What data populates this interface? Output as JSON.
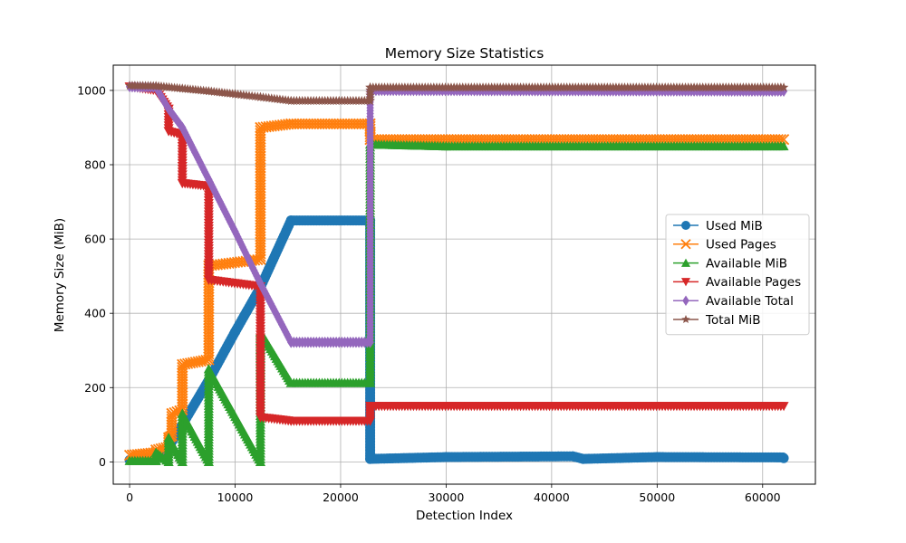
{
  "chart_data": {
    "type": "line",
    "title": "Memory Size Statistics",
    "xlabel": "Detection Index",
    "ylabel": "Memory Size (MiB)",
    "xlim": [
      -1550,
      65000
    ],
    "ylim": [
      -60,
      1068
    ],
    "xticks": [
      0,
      10000,
      20000,
      30000,
      40000,
      50000,
      60000
    ],
    "xtick_labels": [
      "0",
      "10000",
      "20000",
      "30000",
      "40000",
      "50000",
      "60000"
    ],
    "yticks": [
      0,
      200,
      400,
      600,
      800,
      1000
    ],
    "ytick_labels": [
      "0",
      "200",
      "400",
      "600",
      "800",
      "1000"
    ],
    "grid": true,
    "legend_position": "center-right",
    "series": [
      {
        "name": "Used MiB",
        "color": "#1f77b4",
        "marker": "circle",
        "points": [
          [
            0,
            5
          ],
          [
            2500,
            10
          ],
          [
            3700,
            40
          ],
          [
            5000,
            100
          ],
          [
            7500,
            220
          ],
          [
            10000,
            350
          ],
          [
            12400,
            470
          ],
          [
            15300,
            650
          ],
          [
            22800,
            650
          ],
          [
            22800,
            8
          ],
          [
            30000,
            13
          ],
          [
            42000,
            15
          ],
          [
            43000,
            8
          ],
          [
            50000,
            13
          ],
          [
            61900,
            12
          ],
          [
            62000,
            10
          ]
        ]
      },
      {
        "name": "Used Pages",
        "color": "#ff7f0e",
        "marker": "x",
        "points": [
          [
            0,
            18
          ],
          [
            2500,
            25
          ],
          [
            2500,
            32
          ],
          [
            3700,
            40
          ],
          [
            3700,
            65
          ],
          [
            4000,
            70
          ],
          [
            4000,
            130
          ],
          [
            5000,
            140
          ],
          [
            5000,
            262
          ],
          [
            7500,
            275
          ],
          [
            7500,
            528
          ],
          [
            12400,
            545
          ],
          [
            12400,
            900
          ],
          [
            15300,
            910
          ],
          [
            22800,
            910
          ],
          [
            22800,
            868
          ],
          [
            62000,
            868
          ]
        ]
      },
      {
        "name": "Available MiB",
        "color": "#2ca02c",
        "marker": "triangle-up",
        "points": [
          [
            0,
            3
          ],
          [
            2500,
            3
          ],
          [
            2500,
            25
          ],
          [
            3700,
            0
          ],
          [
            3700,
            65
          ],
          [
            5000,
            0
          ],
          [
            5000,
            130
          ],
          [
            7500,
            0
          ],
          [
            7500,
            250
          ],
          [
            12400,
            0
          ],
          [
            12400,
            350
          ],
          [
            15300,
            213
          ],
          [
            22800,
            213
          ],
          [
            22800,
            855
          ],
          [
            30000,
            850
          ],
          [
            62000,
            850
          ]
        ]
      },
      {
        "name": "Available Pages",
        "color": "#d62728",
        "marker": "triangle-down",
        "points": [
          [
            0,
            1010
          ],
          [
            2500,
            1000
          ],
          [
            3700,
            950
          ],
          [
            3700,
            890
          ],
          [
            5000,
            880
          ],
          [
            5000,
            750
          ],
          [
            7500,
            742
          ],
          [
            7500,
            490
          ],
          [
            12400,
            472
          ],
          [
            12400,
            120
          ],
          [
            15300,
            110
          ],
          [
            22800,
            110
          ],
          [
            22800,
            150
          ],
          [
            62000,
            150
          ]
        ]
      },
      {
        "name": "Available Total",
        "color": "#9467bd",
        "marker": "diamond",
        "points": [
          [
            0,
            1010
          ],
          [
            2500,
            1008
          ],
          [
            3700,
            950
          ],
          [
            5000,
            900
          ],
          [
            7500,
            760
          ],
          [
            10000,
            620
          ],
          [
            12400,
            480
          ],
          [
            15300,
            322
          ],
          [
            22800,
            322
          ],
          [
            22800,
            1000
          ],
          [
            62000,
            998
          ]
        ]
      },
      {
        "name": "Total MiB",
        "color": "#8c564b",
        "marker": "star",
        "points": [
          [
            0,
            1013
          ],
          [
            2500,
            1012
          ],
          [
            5000,
            1005
          ],
          [
            7500,
            998
          ],
          [
            10000,
            990
          ],
          [
            12400,
            982
          ],
          [
            15300,
            972
          ],
          [
            22800,
            972
          ],
          [
            22800,
            1008
          ],
          [
            62000,
            1008
          ]
        ]
      }
    ]
  }
}
